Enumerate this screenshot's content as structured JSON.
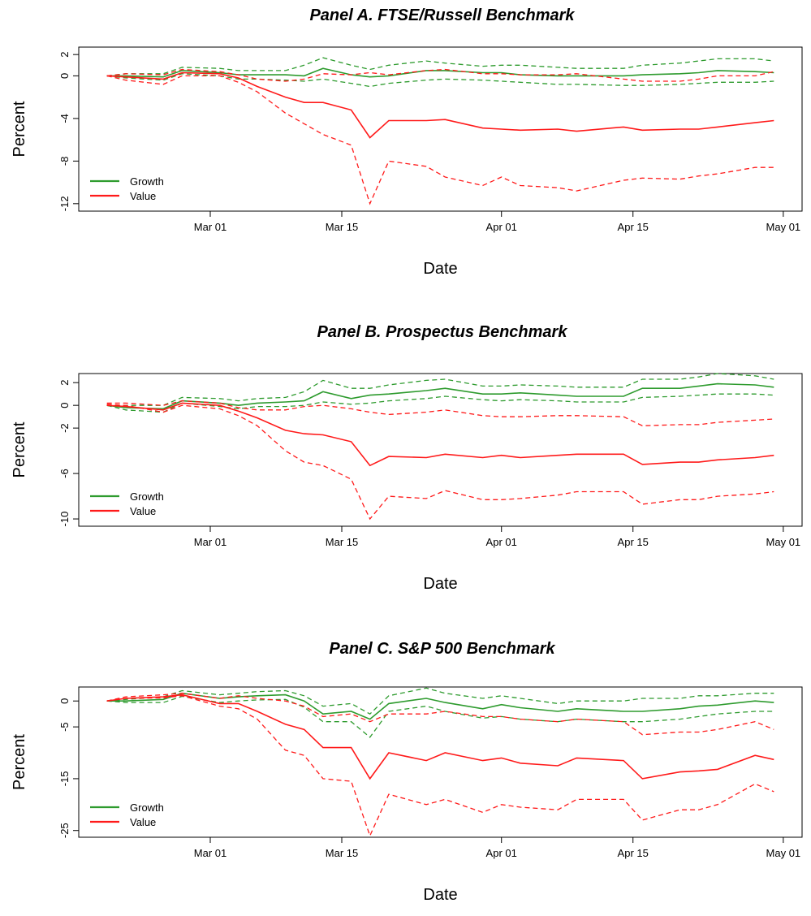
{
  "chart_data": [
    {
      "type": "line",
      "title": "Panel A. FTSE/Russell Benchmark",
      "x_label": "Date",
      "y_label": "Percent",
      "legend": "bottomleft",
      "x": [
        "Feb 19",
        "Feb 21",
        "Feb 25",
        "Feb 27",
        "Mar 02",
        "Mar 04",
        "Mar 06",
        "Mar 09",
        "Mar 11",
        "Mar 13",
        "Mar 16",
        "Mar 18",
        "Mar 20",
        "Mar 24",
        "Mar 26",
        "Mar 30",
        "Apr 01",
        "Apr 03",
        "Apr 07",
        "Apr 09",
        "Apr 14",
        "Apr 16",
        "Apr 20",
        "Apr 22",
        "Apr 24",
        "Apr 28",
        "Apr 30"
      ],
      "xlim": [
        "Feb 16",
        "May 03"
      ],
      "xticks": [
        "Mar 01",
        "Mar 15",
        "Apr 01",
        "Apr 15",
        "May 01"
      ],
      "ylim": [
        -12.7,
        2.7
      ],
      "yticks": [
        2,
        0,
        -4,
        -8,
        -12
      ],
      "series": [
        {
          "name": "Growth",
          "color": "#2e9b2e",
          "values": [
            0,
            0,
            -0.1,
            0.5,
            0.3,
            0.1,
            0.1,
            0.1,
            0,
            0.7,
            0.1,
            -0.1,
            0,
            0.5,
            0.5,
            0.3,
            0.3,
            0.1,
            0,
            0,
            0,
            0.1,
            0.2,
            0.3,
            0.5,
            0.4,
            0.3
          ],
          "upper": [
            0,
            0.2,
            0.2,
            0.8,
            0.7,
            0.5,
            0.5,
            0.5,
            1.0,
            1.7,
            1.0,
            0.6,
            1.0,
            1.4,
            1.2,
            0.9,
            1.0,
            1.0,
            0.8,
            0.7,
            0.7,
            1.0,
            1.2,
            1.4,
            1.6,
            1.6,
            1.4
          ],
          "lower": [
            0,
            -0.2,
            -0.4,
            0.2,
            0,
            -0.3,
            -0.3,
            -0.4,
            -0.5,
            -0.3,
            -0.7,
            -1.0,
            -0.7,
            -0.4,
            -0.3,
            -0.4,
            -0.5,
            -0.6,
            -0.8,
            -0.8,
            -0.9,
            -0.9,
            -0.8,
            -0.7,
            -0.6,
            -0.6,
            -0.5
          ]
        },
        {
          "name": "Value",
          "color": "#ff1a1a",
          "values": [
            0,
            -0.1,
            -0.3,
            0.3,
            0.2,
            -0.2,
            -1,
            -2,
            -2.5,
            -2.5,
            -3.2,
            -5.8,
            -4.2,
            -4.2,
            -4.1,
            -4.9,
            -5.0,
            -5.1,
            -5.0,
            -5.2,
            -4.8,
            -5.1,
            -5.0,
            -5.0,
            -4.8,
            -4.4,
            -4.2
          ],
          "upper": [
            0,
            0.2,
            0.1,
            0.6,
            0.4,
            0.1,
            -0.3,
            -0.5,
            -0.3,
            0.2,
            0.1,
            0.3,
            0.1,
            0.5,
            0.6,
            0.2,
            0.2,
            0.1,
            0.1,
            0.2,
            -0.3,
            -0.5,
            -0.5,
            -0.3,
            0,
            0,
            0.4
          ],
          "lower": [
            0,
            -0.4,
            -0.8,
            0,
            0,
            -0.6,
            -1.5,
            -3.5,
            -4.5,
            -5.5,
            -6.5,
            -12,
            -8,
            -8.5,
            -9.5,
            -10.3,
            -9.5,
            -10.3,
            -10.5,
            -10.8,
            -9.8,
            -9.6,
            -9.7,
            -9.4,
            -9.2,
            -8.6,
            -8.6
          ]
        }
      ]
    },
    {
      "type": "line",
      "title": "Panel B. Prospectus Benchmark",
      "x_label": "Date",
      "y_label": "Percent",
      "legend": "bottomleft",
      "x": [
        "Feb 19",
        "Feb 21",
        "Feb 25",
        "Feb 27",
        "Mar 02",
        "Mar 04",
        "Mar 06",
        "Mar 09",
        "Mar 11",
        "Mar 13",
        "Mar 16",
        "Mar 18",
        "Mar 20",
        "Mar 24",
        "Mar 26",
        "Mar 30",
        "Apr 01",
        "Apr 03",
        "Apr 07",
        "Apr 09",
        "Apr 14",
        "Apr 16",
        "Apr 20",
        "Apr 22",
        "Apr 24",
        "Apr 28",
        "Apr 30"
      ],
      "xlim": [
        "Feb 16",
        "May 03"
      ],
      "xticks": [
        "Mar 01",
        "Mar 15",
        "Apr 01",
        "Apr 15",
        "May 01"
      ],
      "ylim": [
        -10.64,
        2.8
      ],
      "yticks": [
        2,
        0,
        -2,
        -6,
        -10
      ],
      "series": [
        {
          "name": "Growth",
          "color": "#2e9b2e",
          "values": [
            0,
            -0.2,
            -0.3,
            0.4,
            0.2,
            0,
            0.2,
            0.3,
            0.4,
            1.2,
            0.6,
            0.9,
            1.0,
            1.3,
            1.5,
            1.0,
            1.0,
            1.1,
            0.9,
            0.8,
            0.8,
            1.5,
            1.5,
            1.7,
            1.9,
            1.8,
            1.6
          ],
          "upper": [
            0,
            0,
            0,
            0.7,
            0.6,
            0.4,
            0.6,
            0.7,
            1.2,
            2.2,
            1.5,
            1.5,
            1.8,
            2.2,
            2.3,
            1.7,
            1.7,
            1.8,
            1.7,
            1.6,
            1.6,
            2.3,
            2.3,
            2.5,
            2.8,
            2.6,
            2.3
          ],
          "lower": [
            0,
            -0.4,
            -0.6,
            0.2,
            -0.1,
            -0.3,
            -0.1,
            -0.1,
            0,
            0.3,
            0.1,
            0.2,
            0.4,
            0.6,
            0.8,
            0.5,
            0.4,
            0.5,
            0.4,
            0.3,
            0.3,
            0.7,
            0.8,
            0.9,
            1.0,
            1.0,
            0.9
          ]
        },
        {
          "name": "Value",
          "color": "#ff1a1a",
          "values": [
            0,
            -0.1,
            -0.4,
            0.2,
            0,
            -0.5,
            -1.1,
            -2.2,
            -2.5,
            -2.6,
            -3.2,
            -5.3,
            -4.5,
            -4.6,
            -4.3,
            -4.6,
            -4.4,
            -4.6,
            -4.4,
            -4.3,
            -4.3,
            -5.2,
            -5.0,
            -5.0,
            -4.8,
            -4.6,
            -4.4
          ],
          "upper": [
            0.2,
            0.2,
            0,
            0.4,
            0.2,
            -0.2,
            -0.4,
            -0.4,
            -0.1,
            0,
            -0.3,
            -0.6,
            -0.8,
            -0.6,
            -0.4,
            -0.9,
            -1.0,
            -1.0,
            -0.9,
            -0.9,
            -1.0,
            -1.8,
            -1.7,
            -1.7,
            -1.5,
            -1.3,
            -1.2
          ],
          "lower": [
            0.1,
            0,
            -0.6,
            0,
            -0.3,
            -0.9,
            -1.8,
            -4,
            -5,
            -5.3,
            -6.5,
            -10,
            -8,
            -8.2,
            -7.5,
            -8.3,
            -8.3,
            -8.2,
            -7.9,
            -7.6,
            -7.6,
            -8.7,
            -8.3,
            -8.3,
            -8,
            -7.8,
            -7.6
          ]
        }
      ]
    },
    {
      "type": "line",
      "title": "Panel C. S&P 500 Benchmark",
      "x_label": "Date",
      "y_label": "Percent",
      "legend": "bottomleft",
      "x": [
        "Feb 19",
        "Feb 21",
        "Feb 25",
        "Feb 27",
        "Mar 02",
        "Mar 04",
        "Mar 06",
        "Mar 09",
        "Mar 11",
        "Mar 13",
        "Mar 16",
        "Mar 18",
        "Mar 20",
        "Mar 24",
        "Mar 26",
        "Mar 30",
        "Apr 01",
        "Apr 03",
        "Apr 07",
        "Apr 09",
        "Apr 14",
        "Apr 16",
        "Apr 20",
        "Apr 22",
        "Apr 24",
        "Apr 28",
        "Apr 30"
      ],
      "xlim": [
        "Feb 16",
        "May 03"
      ],
      "xticks": [
        "Mar 01",
        "Mar 15",
        "Apr 01",
        "Apr 15",
        "May 01"
      ],
      "ylim": [
        -26.3,
        2.7
      ],
      "yticks": [
        0,
        -5,
        -15,
        -25
      ],
      "series": [
        {
          "name": "Growth",
          "color": "#2e9b2e",
          "values": [
            0,
            0,
            0.3,
            1.5,
            0.5,
            0.8,
            1.0,
            1.2,
            0,
            -2.5,
            -2,
            -3.5,
            -0.5,
            0.5,
            -0.3,
            -1.5,
            -0.7,
            -1.3,
            -2,
            -1.5,
            -2,
            -2,
            -1.5,
            -1,
            -0.8,
            0,
            -0.3
          ],
          "upper": [
            0,
            0.3,
            0.8,
            2.0,
            1.2,
            1.5,
            1.8,
            2,
            1,
            -1,
            -0.5,
            -2.5,
            1,
            2.5,
            1.5,
            0.5,
            1,
            0.5,
            -0.5,
            0,
            0,
            0.5,
            0.5,
            1,
            1,
            1.5,
            1.5
          ],
          "lower": [
            0,
            -0.3,
            -0.3,
            0.9,
            -0.3,
            0,
            0.2,
            0.3,
            -1.2,
            -4,
            -4,
            -7,
            -2,
            -1,
            -2,
            -3.3,
            -3,
            -3.5,
            -4,
            -3.5,
            -4,
            -4,
            -3.5,
            -3,
            -2.5,
            -2,
            -2
          ]
        },
        {
          "name": "Value",
          "color": "#ff1a1a",
          "values": [
            0,
            0.5,
            0.8,
            1.2,
            -0.5,
            -0.5,
            -2,
            -4.5,
            -5.5,
            -9,
            -9,
            -15,
            -10,
            -11.5,
            -10,
            -11.5,
            -11,
            -12,
            -12.5,
            -11,
            -11.5,
            -15,
            -13.7,
            -13.5,
            -13.2,
            -10.5,
            -11.3
          ],
          "upper": [
            0,
            0.8,
            1.2,
            1.5,
            0.5,
            1,
            0.5,
            0,
            -1,
            -3,
            -2.5,
            -4,
            -2.5,
            -2.5,
            -2,
            -3,
            -3,
            -3.5,
            -4,
            -3.5,
            -4,
            -6.5,
            -6,
            -6,
            -5.5,
            -4,
            -5.5
          ],
          "lower": [
            0,
            0.5,
            0.6,
            1.0,
            -1,
            -1.5,
            -3.5,
            -9.5,
            -10.5,
            -15,
            -15.5,
            -26,
            -18,
            -20,
            -19,
            -21.5,
            -20,
            -20.5,
            -21,
            -19,
            -19,
            -23,
            -21,
            -21,
            -20,
            -16,
            -17.5
          ]
        }
      ]
    }
  ]
}
